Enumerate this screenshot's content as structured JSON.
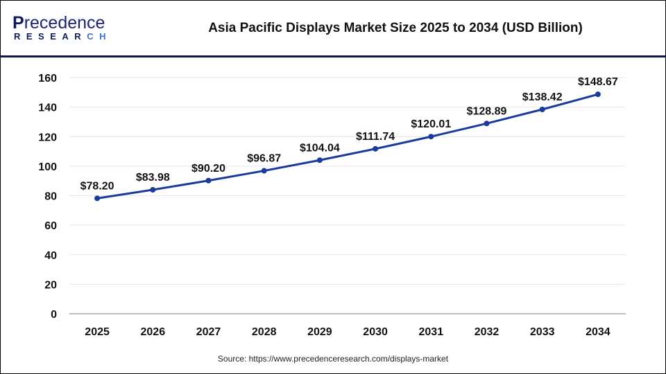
{
  "header": {
    "logo_text": "Precedence",
    "logo_subtext": "RESEARCH",
    "title": "Asia Pacific Displays Market Size 2025 to 2034 (USD Billion)"
  },
  "source": "Source: https://www.precedenceresearch.com/displays-market",
  "colors": {
    "line": "#1a3a9c",
    "header_rule": "#0f1440",
    "grid": "#e6e6e6"
  },
  "chart_data": {
    "type": "line",
    "title": "Asia Pacific Displays Market Size 2025 to 2034 (USD Billion)",
    "categories": [
      "2025",
      "2026",
      "2027",
      "2028",
      "2029",
      "2030",
      "2031",
      "2032",
      "2033",
      "2034"
    ],
    "values": [
      78.2,
      83.98,
      90.2,
      96.87,
      104.04,
      111.74,
      120.01,
      128.89,
      138.42,
      148.67
    ],
    "data_labels": [
      "$78.20",
      "$83.98",
      "$90.20",
      "$96.87",
      "$104.04",
      "$111.74",
      "$120.01",
      "$128.89",
      "$138.42",
      "$148.67"
    ],
    "yticks": [
      0,
      20,
      40,
      60,
      80,
      100,
      120,
      140,
      160
    ],
    "ylim": [
      0,
      160
    ],
    "xlabel": "",
    "ylabel": "",
    "grid": true,
    "legend": "none"
  }
}
